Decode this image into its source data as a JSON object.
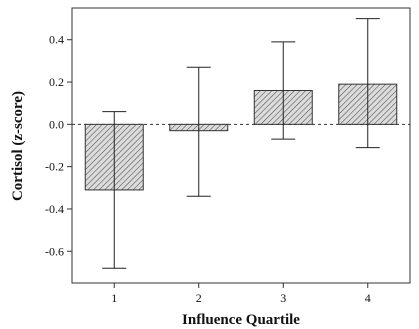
{
  "chart_data": {
    "type": "bar",
    "title": "",
    "xlabel": "Influence Quartile",
    "ylabel": "Cortisol (z-score)",
    "categories": [
      "1",
      "2",
      "3",
      "4"
    ],
    "values": [
      -0.31,
      -0.03,
      0.16,
      0.19
    ],
    "error_low": [
      -0.68,
      -0.34,
      -0.07,
      -0.11
    ],
    "error_high": [
      0.06,
      0.27,
      0.39,
      0.5
    ],
    "ylim": [
      -0.75,
      0.55
    ],
    "yticks": [
      -0.6,
      -0.4,
      -0.2,
      0.0,
      0.2,
      0.4
    ],
    "ytick_labels": [
      "-0.6",
      "-0.4",
      "-0.2",
      "0.0",
      "0.2",
      "0.4"
    ],
    "reference_line": 0.0,
    "bar_pattern": "diagonal-hatch",
    "colors": {
      "bar_fill": "#dcdcdc",
      "hatch": "#555555",
      "stroke": "#333333"
    }
  }
}
